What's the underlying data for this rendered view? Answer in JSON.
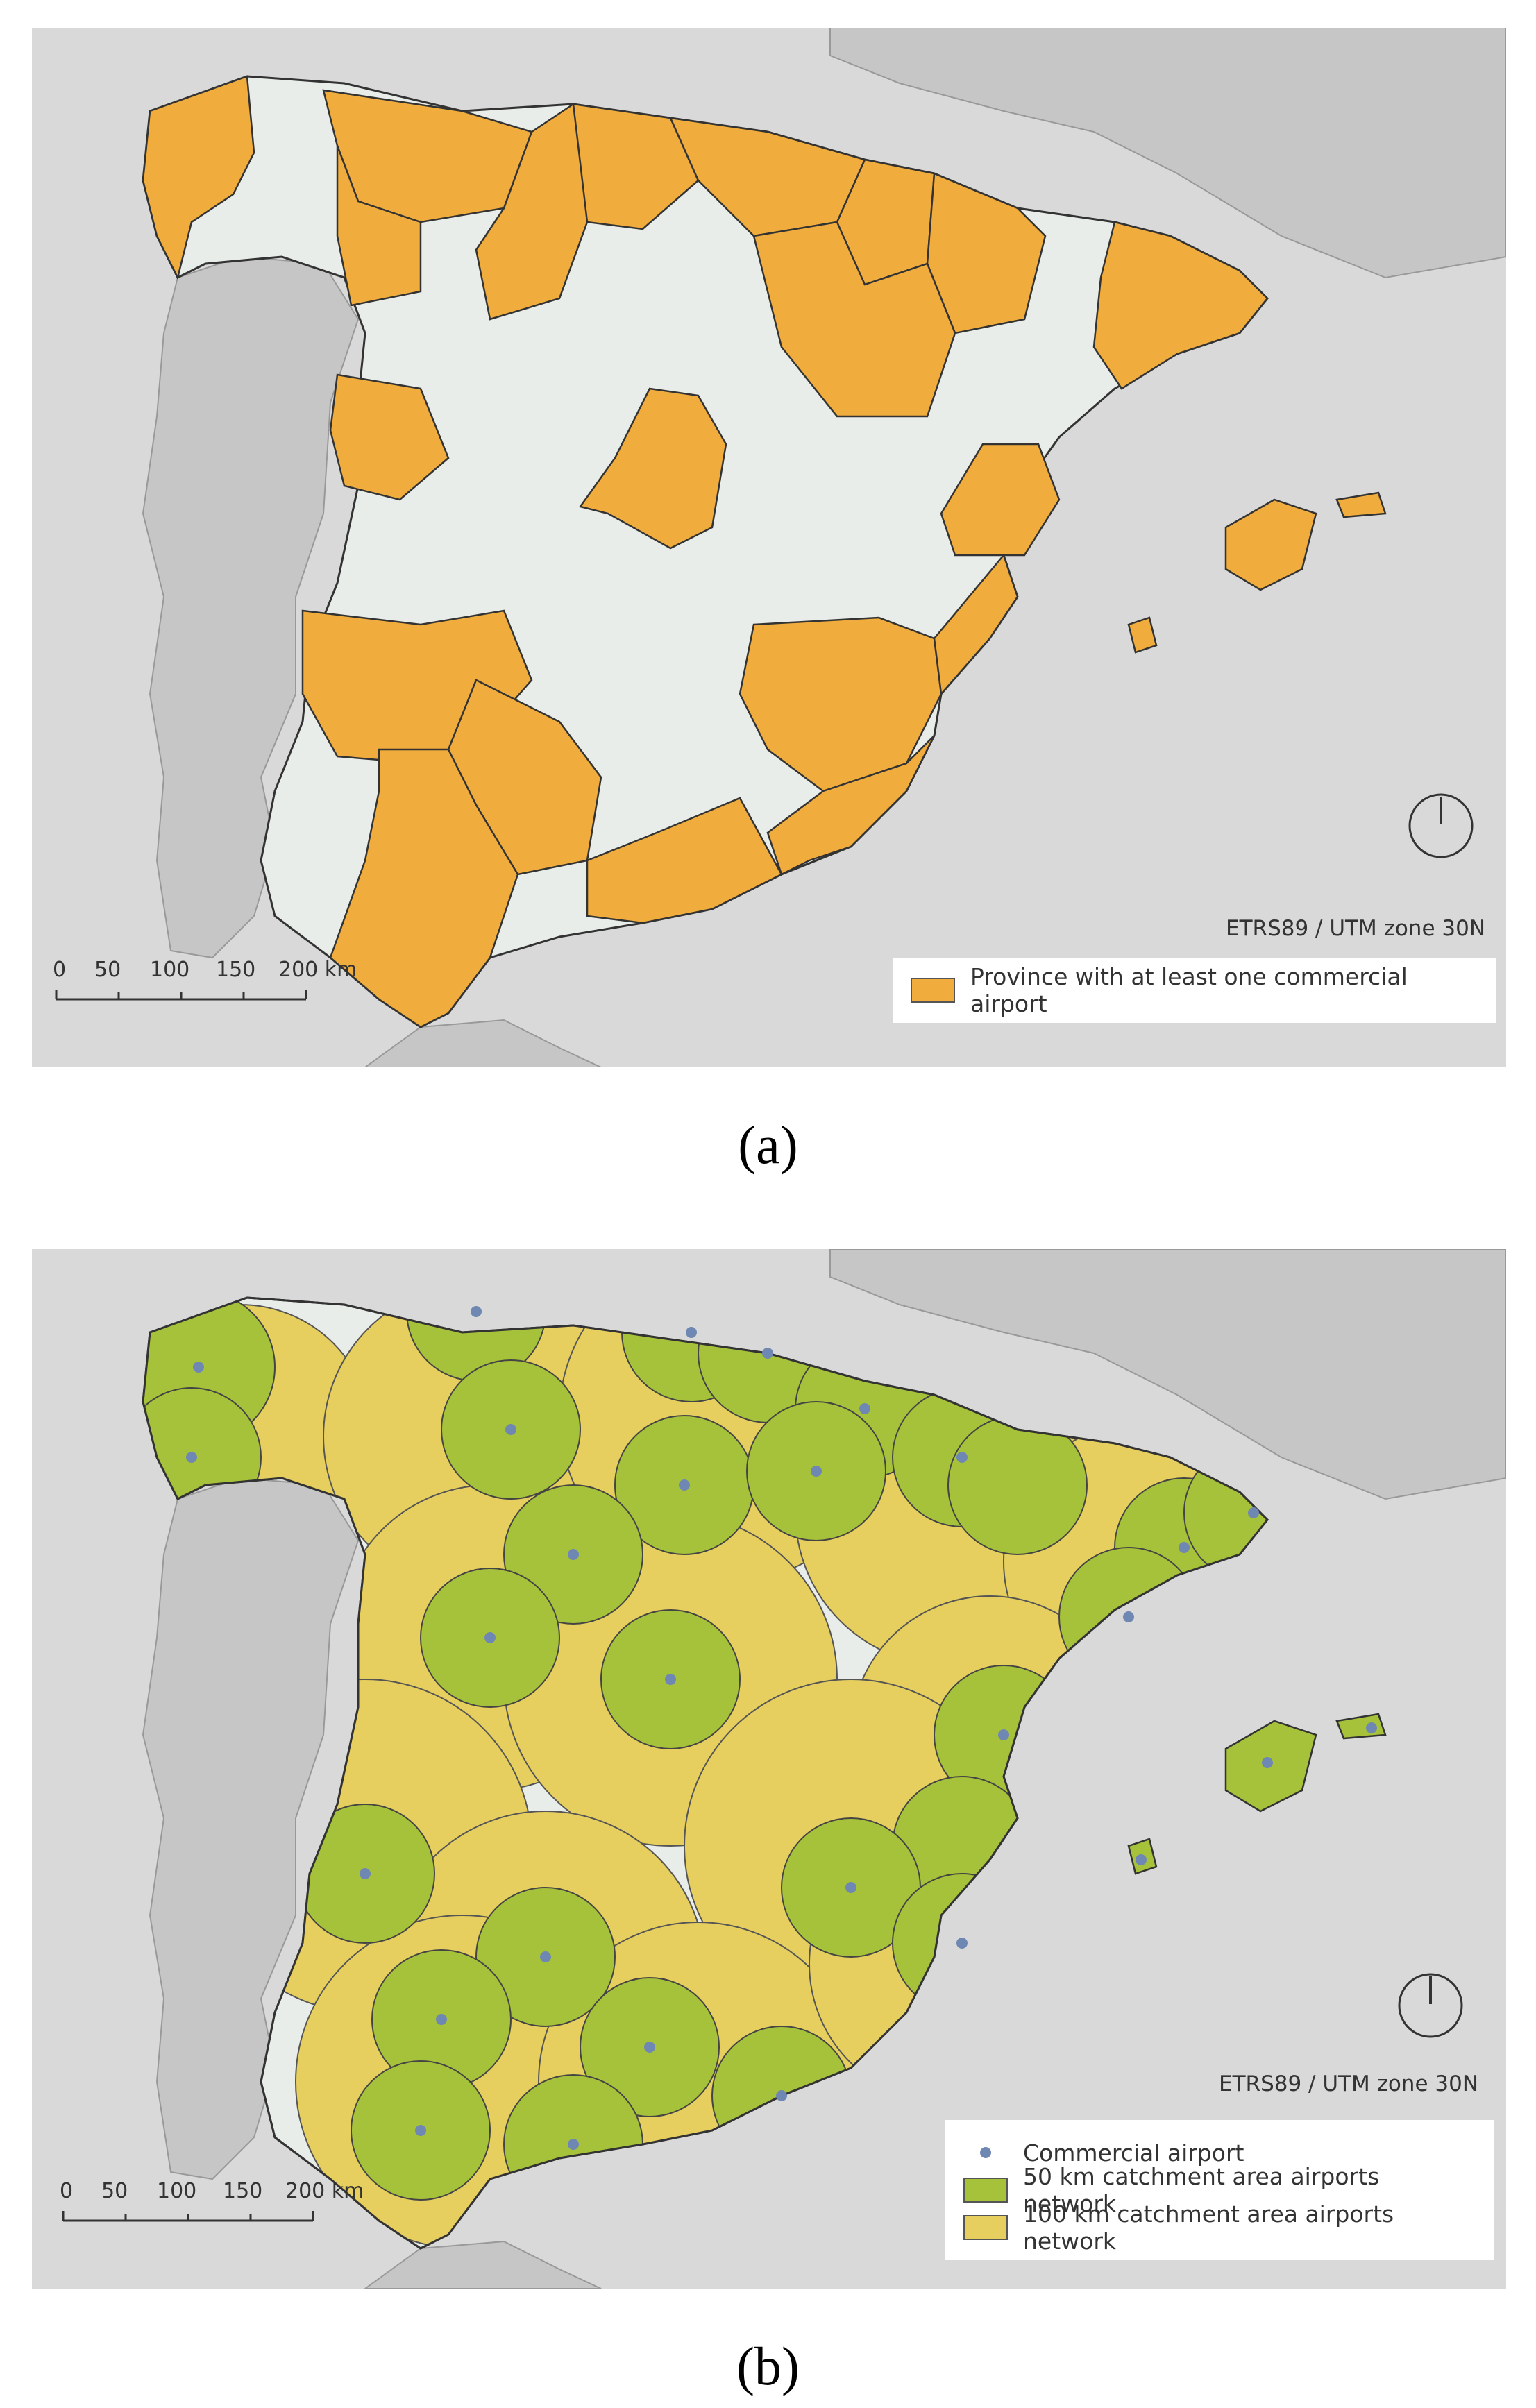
{
  "panel_a": {
    "caption": "(a)",
    "crs_label": "ETRS89 / UTM zone 30N",
    "scale_bar": {
      "ticks": [
        "0",
        "50",
        "100",
        "150",
        "200 km"
      ]
    },
    "legend": [
      {
        "label": "Province with at least one commercial airport",
        "kind": "fill",
        "color": "#f0ac3c"
      }
    ]
  },
  "panel_b": {
    "caption": "(b)",
    "crs_label": "ETRS89 / UTM zone 30N",
    "scale_bar": {
      "ticks": [
        "0",
        "50",
        "100",
        "150",
        "200 km"
      ]
    },
    "legend": [
      {
        "label": "Commercial airport",
        "kind": "dot",
        "color": "#6f87b3"
      },
      {
        "label": "50 km catchment area airports network",
        "kind": "fill",
        "color": "#a6c13a"
      },
      {
        "label": "100 km catchment area airports network",
        "kind": "fill",
        "color": "#e6cf5e"
      }
    ]
  },
  "colors": {
    "sea": "#d9d9d9",
    "land_other": "#c6c6c6",
    "spain_base": "#e9ede9",
    "province_airport": "#f0ac3c",
    "catchment_50": "#a6c13a",
    "catchment_100": "#e6cf5e",
    "airport": "#6f87b3",
    "border": "#333333"
  }
}
